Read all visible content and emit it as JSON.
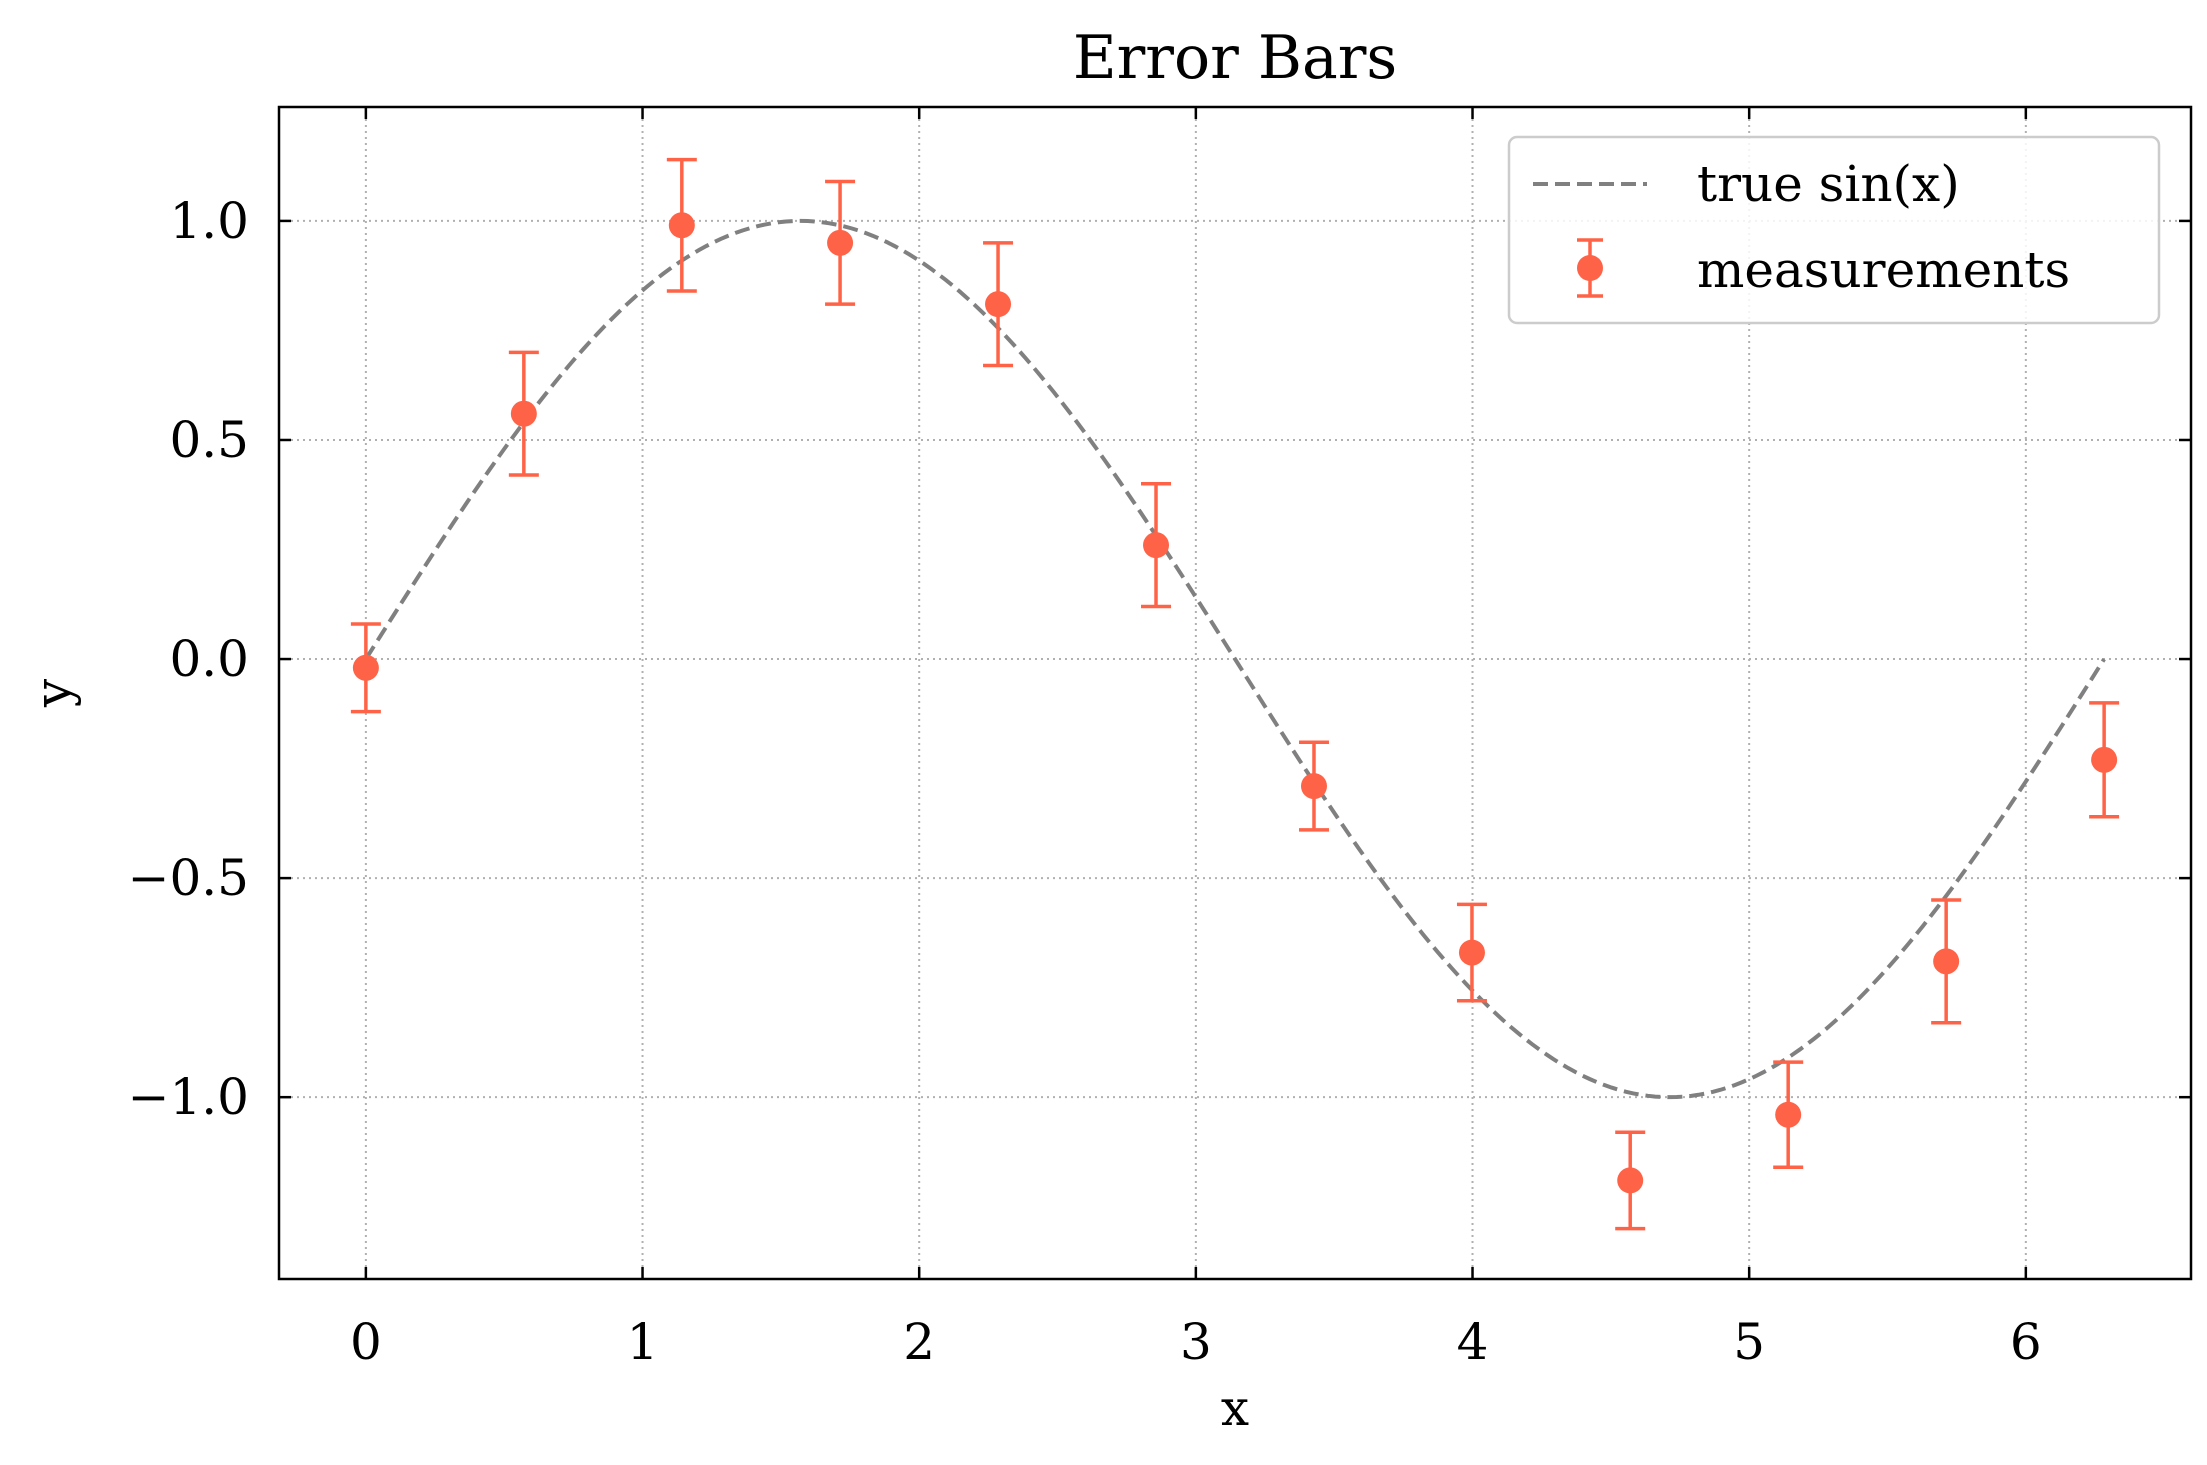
{
  "chart_data": {
    "type": "scatter",
    "title": "Error Bars",
    "xlabel": "x",
    "ylabel": "y",
    "xlim": [
      -0.314,
      6.597
    ],
    "ylim": [
      -1.415,
      1.26
    ],
    "xticks": [
      0,
      1,
      2,
      3,
      4,
      5,
      6
    ],
    "xtick_labels": [
      "0",
      "1",
      "2",
      "3",
      "4",
      "5",
      "6"
    ],
    "yticks": [
      1.0,
      0.5,
      0.0,
      -0.5,
      -1.0
    ],
    "ytick_labels": [
      "1.0",
      "0.5",
      "0.0",
      "−0.5",
      "−1.0"
    ],
    "grid": true,
    "legend_position": "upper right",
    "series": [
      {
        "name": "true sin(x)",
        "kind": "line",
        "style": "dashed",
        "color": "#808080",
        "function": "sin(x)",
        "x_range": [
          0,
          6.283
        ]
      },
      {
        "name": "measurements",
        "kind": "errorbar",
        "color": "#ff6347",
        "x": [
          0.0,
          0.571,
          1.142,
          1.714,
          2.285,
          2.856,
          3.427,
          3.998,
          4.57,
          5.141,
          5.712,
          6.283
        ],
        "y": [
          -0.02,
          0.56,
          0.99,
          0.95,
          0.81,
          0.26,
          -0.29,
          -0.67,
          -1.19,
          -1.04,
          -0.69,
          -0.23
        ],
        "yerr": [
          0.1,
          0.14,
          0.15,
          0.14,
          0.14,
          0.14,
          0.1,
          0.11,
          0.11,
          0.12,
          0.14,
          0.13
        ]
      }
    ]
  }
}
